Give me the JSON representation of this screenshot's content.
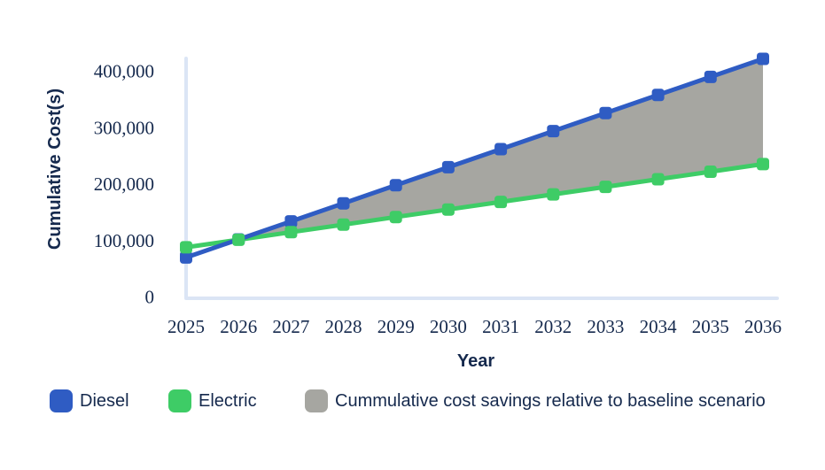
{
  "chart_data": {
    "type": "line",
    "title": "",
    "xlabel": "Year",
    "ylabel": "Cumulative Cost(s)",
    "x": [
      2025,
      2026,
      2027,
      2028,
      2029,
      2030,
      2031,
      2032,
      2033,
      2034,
      2035,
      2036
    ],
    "series": [
      {
        "name": "Diesel",
        "color": "#2f5cc3",
        "values": [
          70000,
          102000,
          134000,
          166000,
          198000,
          230000,
          262000,
          294000,
          326000,
          358000,
          390000,
          422000
        ]
      },
      {
        "name": "Electric",
        "color": "#3ecc66",
        "values": [
          88000,
          101400,
          114800,
          128200,
          141600,
          155000,
          168400,
          181800,
          195200,
          208600,
          222000,
          235400
        ]
      }
    ],
    "area": {
      "label": "Cummulative cost savings relative to baseline scenario",
      "color": "#a6a6a1",
      "between": [
        "Diesel",
        "Electric"
      ]
    },
    "y_ticks": [
      0,
      100000,
      200000,
      300000,
      400000
    ],
    "ylim": [
      0,
      430000
    ],
    "grid": false,
    "legend_position": "bottom-left",
    "marker": "rounded-square"
  },
  "colors": {
    "text": "#15294d",
    "axis_line": "#dbe5f5",
    "background": "#ffffff"
  }
}
